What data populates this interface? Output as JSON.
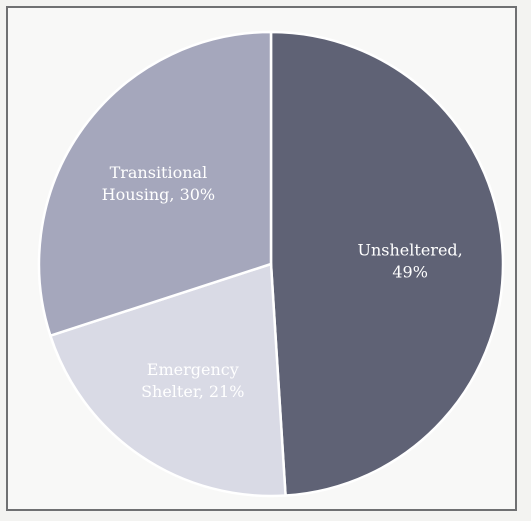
{
  "chart_data": {
    "type": "pie",
    "title": "",
    "slices": [
      {
        "label": "Unsheltered, 49%",
        "line1": "Unsheltered,",
        "line2": "49%",
        "value": 49,
        "color": "#5f6275"
      },
      {
        "label": "Emergency Shelter, 21%",
        "line1": "Emergency",
        "line2": "Shelter, 21%",
        "value": 21,
        "color": "#d9dae5"
      },
      {
        "label": "Transitional Housing, 30%",
        "line1": "Transitional",
        "line2": "Housing, 30%",
        "value": 30,
        "color": "#a5a7bc"
      }
    ],
    "legend": "none",
    "start_angle_deg": 0,
    "direction": "clockwise"
  }
}
